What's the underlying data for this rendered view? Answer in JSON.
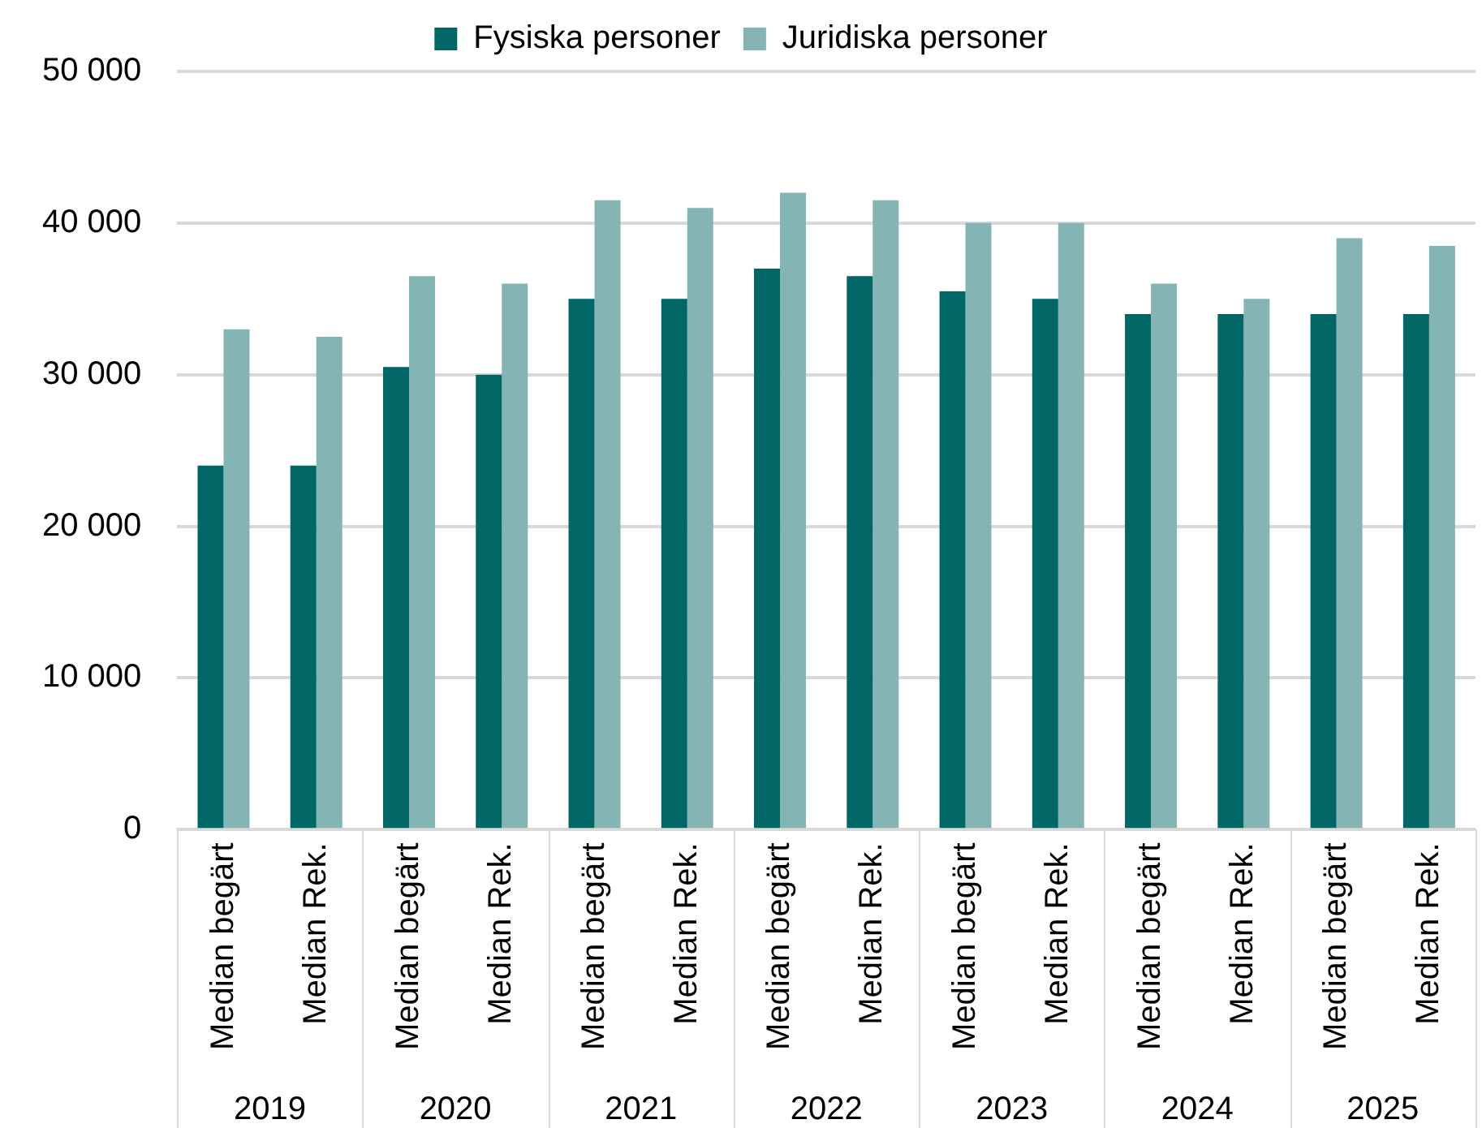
{
  "chart_data": {
    "type": "bar",
    "categories": [
      "Median begärt",
      "Median Rek.",
      "Median begärt",
      "Median Rek.",
      "Median begärt",
      "Median Rek.",
      "Median begärt",
      "Median Rek.",
      "Median begärt",
      "Median Rek.",
      "Median begärt",
      "Median Rek.",
      "Median begärt",
      "Median Rek."
    ],
    "series": [
      {
        "name": "Fysiska personer",
        "color": "#006666",
        "values": [
          24000,
          24000,
          30500,
          30000,
          35000,
          35000,
          37000,
          36500,
          35500,
          35000,
          34000,
          34000,
          34000,
          34000
        ]
      },
      {
        "name": "Juridiska personer",
        "color": "#84b5b4",
        "values": [
          33000,
          32500,
          36500,
          36000,
          41500,
          41000,
          42000,
          41500,
          40000,
          40000,
          36000,
          35000,
          39000,
          38500
        ]
      }
    ],
    "ylim": [
      0,
      50000
    ],
    "yticks": [
      0,
      {
        "value": 10000,
        "label": "10 000"
      },
      {
        "value": 20000,
        "label": "20 000"
      },
      {
        "value": 30000,
        "label": "30 000"
      },
      {
        "value": 40000,
        "label": "40 000"
      },
      {
        "value": 50000,
        "label": "50 000"
      }
    ],
    "grid": "y",
    "legend": "top",
    "annotations": [
      "2019",
      "2020",
      "2021",
      "2022",
      "2023",
      "2024",
      "2025"
    ]
  }
}
